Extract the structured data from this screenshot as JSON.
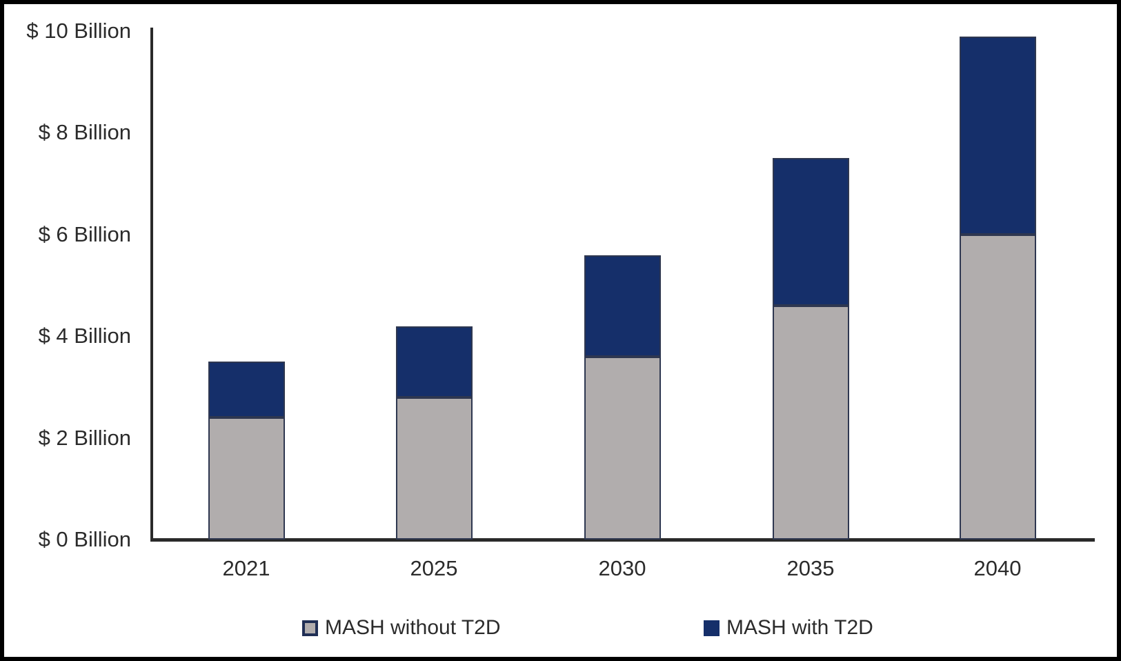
{
  "chart_data": {
    "type": "bar",
    "stacked": true,
    "title": "",
    "xlabel": "",
    "ylabel": "",
    "categories": [
      "2021",
      "2025",
      "2030",
      "2035",
      "2040"
    ],
    "series": [
      {
        "name": "MASH without T2D",
        "color": "#b1adad",
        "values": [
          2.4,
          2.8,
          3.6,
          4.6,
          6.0
        ]
      },
      {
        "name": "MASH with T2D",
        "color": "#152f6a",
        "values": [
          1.1,
          1.4,
          2.0,
          2.9,
          3.9
        ]
      }
    ],
    "totals": [
      3.5,
      4.2,
      5.6,
      7.5,
      9.9
    ],
    "ylim": [
      0,
      10
    ],
    "yticks": [
      0,
      2,
      4,
      6,
      8,
      10
    ],
    "ytick_labels": [
      "$ 0 Billion",
      "$ 2 Billion",
      "$ 4 Billion",
      "$ 6 Billion",
      "$ 8 Billion",
      "$ 10 Billion"
    ],
    "grid": false,
    "legend_position": "bottom"
  },
  "colors": {
    "background": "#ffffff",
    "frame_border": "#000000",
    "axis": "#2a2a2a",
    "text": "#2b2b2b",
    "bar_border": "#2e3750",
    "legend_gray_swatch_border": "#202f55"
  }
}
